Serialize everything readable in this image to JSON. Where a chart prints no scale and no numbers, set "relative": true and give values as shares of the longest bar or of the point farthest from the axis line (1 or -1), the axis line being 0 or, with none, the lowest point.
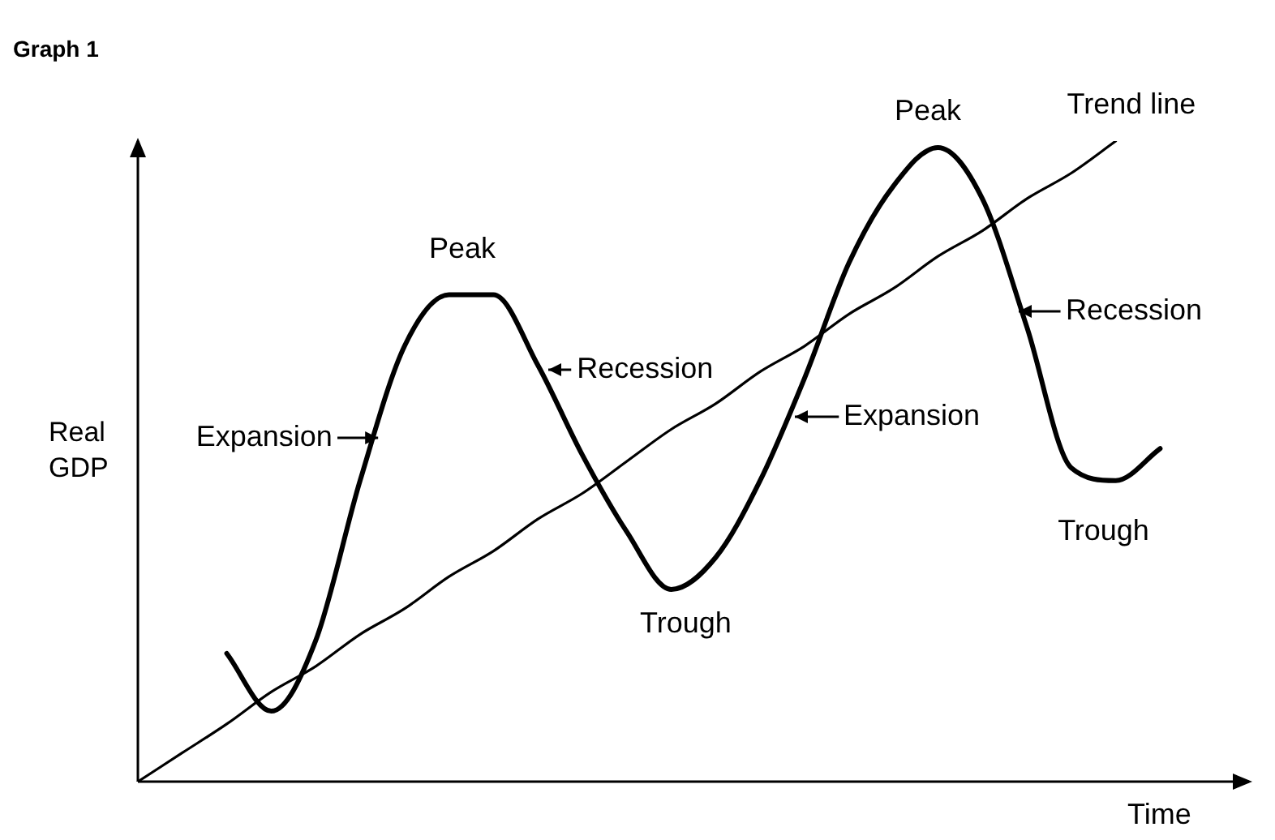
{
  "chart_data": {
    "type": "line",
    "title": "Graph 1",
    "xlabel": "Time",
    "ylabel": "Real GDP",
    "relative": true,
    "tick_labels": false,
    "legend": false,
    "marker": "none",
    "line_style": "solid",
    "categories": [
      null,
      null,
      null,
      null,
      null,
      null,
      null,
      null,
      null,
      null,
      null,
      null,
      null,
      null,
      null,
      null,
      null,
      null,
      null,
      null,
      null,
      null,
      null,
      null,
      null,
      null
    ],
    "series": [
      {
        "color": "#000000",
        "values": [
          null,
          null,
          0.2,
          0.11,
          0.22,
          0.47,
          0.68,
          0.76,
          0.76,
          0.65,
          0.51,
          0.39,
          0.3,
          0.35,
          0.47,
          0.63,
          0.81,
          0.93,
          0.99,
          0.91,
          0.71,
          0.49,
          0.47,
          0.52,
          null,
          null
        ]
      },
      {
        "name": "Trend line",
        "color": "#000000",
        "values": [
          0,
          0.045,
          0.09,
          0.14,
          0.18,
          0.23,
          0.27,
          0.32,
          0.36,
          0.41,
          0.45,
          0.5,
          0.55,
          0.59,
          0.64,
          0.68,
          0.73,
          0.77,
          0.82,
          0.86,
          0.91,
          0.95,
          1,
          null,
          null,
          null
        ]
      }
    ],
    "annotations": [
      "Peak",
      "Expansion",
      "Recession",
      "Trough",
      "Expansion",
      "Peak",
      "Recession",
      "Trough"
    ]
  }
}
